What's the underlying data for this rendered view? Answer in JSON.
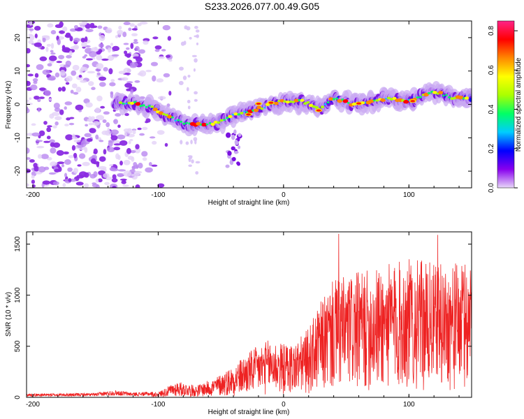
{
  "title": "S233.2026.077.00.49.G05",
  "chart_data": [
    {
      "type": "heatmap",
      "name": "spectrogram",
      "xlabel": "Height of straight line (km)",
      "ylabel": "Frequency (Hz)",
      "xlim": [
        -205,
        150
      ],
      "ylim": [
        -25,
        25
      ],
      "xticks": [
        -200,
        -100,
        0,
        100
      ],
      "yticks": [
        -20,
        -10,
        0,
        10,
        20
      ],
      "colorbar": {
        "label": "Normalized spectral amplitude",
        "range": [
          0.0,
          0.85
        ],
        "ticks": [
          0.0,
          0.2,
          0.4,
          0.6,
          0.8
        ],
        "tick_labels": [
          "0.0",
          "0.2",
          "0.4",
          "0.6",
          "0.8"
        ],
        "colors": [
          "#e8d8f8",
          "#8800ee",
          "#0000ff",
          "#00ccff",
          "#00ff66",
          "#aaff00",
          "#ffff00",
          "#ff8800",
          "#ff0000",
          "#ff2288"
        ]
      },
      "ridge_track": [
        {
          "x": -135,
          "y": 0.5
        },
        {
          "x": -120,
          "y": 0.5
        },
        {
          "x": -105,
          "y": -1
        },
        {
          "x": -90,
          "y": -4
        },
        {
          "x": -75,
          "y": -6
        },
        {
          "x": -60,
          "y": -6
        },
        {
          "x": -48,
          "y": -5
        },
        {
          "x": -38,
          "y": -3
        },
        {
          "x": -25,
          "y": -2
        },
        {
          "x": -10,
          "y": 0
        },
        {
          "x": 0,
          "y": 1
        },
        {
          "x": 15,
          "y": 1
        },
        {
          "x": 30,
          "y": -1.5
        },
        {
          "x": 40,
          "y": 2
        },
        {
          "x": 55,
          "y": 0
        },
        {
          "x": 70,
          "y": 1
        },
        {
          "x": 85,
          "y": 2
        },
        {
          "x": 100,
          "y": 1
        },
        {
          "x": 120,
          "y": 4
        },
        {
          "x": 135,
          "y": 2
        },
        {
          "x": 150,
          "y": 2
        }
      ]
    },
    {
      "type": "line",
      "name": "snr",
      "xlabel": "Height of straight line (km)",
      "ylabel": "SNR (10 * v/v)",
      "xlim": [
        -205,
        150
      ],
      "ylim": [
        0,
        1620
      ],
      "xticks": [
        -200,
        -100,
        0,
        100
      ],
      "yticks": [
        0,
        500,
        1000,
        1500
      ],
      "color": "#ee2222",
      "envelope": [
        {
          "x": -205,
          "y": 30
        },
        {
          "x": -150,
          "y": 35
        },
        {
          "x": -135,
          "y": 60
        },
        {
          "x": -120,
          "y": 40
        },
        {
          "x": -100,
          "y": 50
        },
        {
          "x": -85,
          "y": 150
        },
        {
          "x": -70,
          "y": 110
        },
        {
          "x": -55,
          "y": 180
        },
        {
          "x": -40,
          "y": 300
        },
        {
          "x": -25,
          "y": 450
        },
        {
          "x": -10,
          "y": 550
        },
        {
          "x": 0,
          "y": 500
        },
        {
          "x": 10,
          "y": 520
        },
        {
          "x": 20,
          "y": 650
        },
        {
          "x": 30,
          "y": 900
        },
        {
          "x": 40,
          "y": 1100
        },
        {
          "x": 55,
          "y": 1150
        },
        {
          "x": 70,
          "y": 1200
        },
        {
          "x": 85,
          "y": 1250
        },
        {
          "x": 100,
          "y": 1300
        },
        {
          "x": 120,
          "y": 1250
        },
        {
          "x": 140,
          "y": 1250
        },
        {
          "x": 150,
          "y": 1300
        }
      ],
      "peaks": [
        {
          "x": 44,
          "y": 1600
        },
        {
          "x": 123,
          "y": 1590
        },
        {
          "x": 150,
          "y": 1500
        }
      ]
    }
  ]
}
